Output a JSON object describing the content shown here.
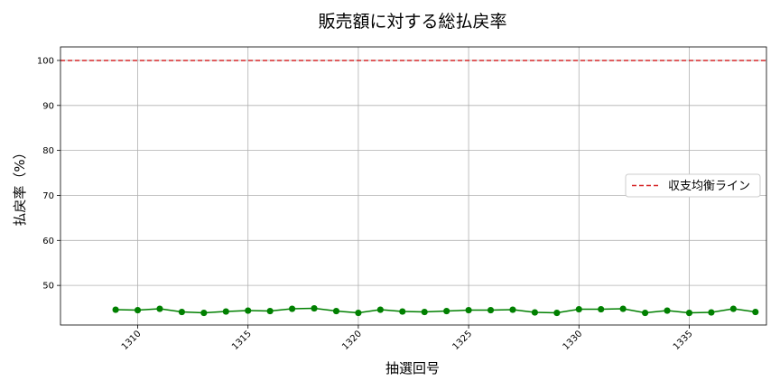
{
  "chart_data": {
    "type": "line",
    "title": "販売額に対する総払戻率",
    "xlabel": "抽選回号",
    "ylabel": "払戻率（%）",
    "xlim": [
      1306.5,
      1338.5
    ],
    "ylim": [
      41.2,
      103
    ],
    "x_ticks": [
      1310,
      1315,
      1320,
      1325,
      1330,
      1335
    ],
    "y_ticks": [
      50,
      60,
      70,
      80,
      90,
      100
    ],
    "grid": true,
    "legend_position": "center-right",
    "series": [
      {
        "color": "#008000",
        "marker": "circle",
        "x": [
          1309,
          1310,
          1311,
          1312,
          1313,
          1314,
          1315,
          1316,
          1317,
          1318,
          1319,
          1320,
          1321,
          1322,
          1323,
          1324,
          1325,
          1326,
          1327,
          1328,
          1329,
          1330,
          1331,
          1332,
          1333,
          1334,
          1335,
          1336,
          1337,
          1338
        ],
        "y": [
          44.6,
          44.5,
          44.8,
          44.1,
          43.9,
          44.2,
          44.4,
          44.3,
          44.8,
          44.9,
          44.3,
          43.9,
          44.6,
          44.2,
          44.1,
          44.3,
          44.5,
          44.5,
          44.6,
          44.0,
          43.9,
          44.7,
          44.7,
          44.8,
          43.9,
          44.4,
          43.9,
          44.0,
          44.8,
          44.1
        ]
      }
    ],
    "reference_lines": [
      {
        "name": "収支均衡ライン",
        "y": 100,
        "color": "#d62728",
        "style": "dashed"
      }
    ]
  }
}
